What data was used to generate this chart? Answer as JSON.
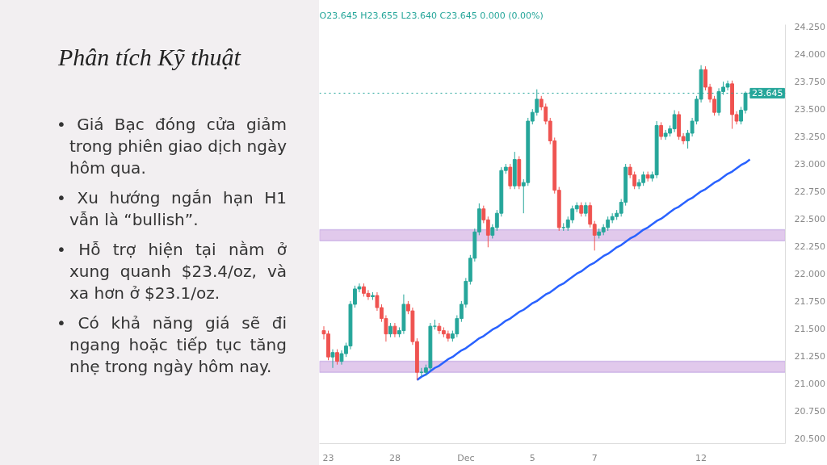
{
  "chart_data": {
    "type": "candlestick",
    "title": "Phân tích Kỹ thuật",
    "subtitle": "O23.645 H23.655 L23.640 C23.645 0.000 (0.00%)",
    "annotations": [
      "• Giá Bạc đóng cửa giảm trong phiên giao dịch ngày hôm qua.",
      "• Xu hướng ngắn hạn H1 vẫn là “bullish”.",
      "• Hỗ trợ hiện tại nằm ở xung quanh $23.4/oz, và xa hơn ở $23.1/oz.",
      "• Có khả năng giá sẽ đi ngang hoặc tiếp tục tăng nhẹ trong ngày hôm nay."
    ],
    "categories": [
      null,
      "23",
      null,
      null,
      null,
      null,
      null,
      null,
      null,
      null,
      null,
      null,
      null,
      null,
      null,
      null,
      "28",
      null,
      null,
      null,
      null,
      null,
      null,
      null,
      null,
      null,
      null,
      null,
      null,
      null,
      null,
      null,
      "Dec",
      null,
      null,
      null,
      null,
      null,
      null,
      null,
      null,
      null,
      null,
      null,
      null,
      null,
      null,
      "5",
      null,
      null,
      null,
      null,
      null,
      null,
      null,
      null,
      null,
      null,
      null,
      null,
      null,
      "7",
      null,
      null,
      null,
      null,
      null,
      null,
      null,
      null,
      null,
      null,
      null,
      null,
      null,
      null,
      null,
      null,
      null,
      null,
      null,
      null,
      null,
      null,
      null,
      "12",
      null,
      null,
      null,
      null,
      null,
      null,
      null,
      null,
      null,
      null,
      null
    ],
    "ohlc": [
      [
        21.48,
        21.52,
        21.4,
        21.45
      ],
      [
        21.45,
        21.48,
        21.21,
        21.24
      ],
      [
        21.24,
        21.31,
        21.14,
        21.28
      ],
      [
        21.28,
        21.31,
        21.17,
        21.2
      ],
      [
        21.2,
        21.3,
        21.17,
        21.27
      ],
      [
        21.27,
        21.37,
        21.24,
        21.34
      ],
      [
        21.34,
        21.75,
        21.31,
        21.72
      ],
      [
        21.72,
        21.89,
        21.69,
        21.86
      ],
      [
        21.86,
        21.91,
        21.83,
        21.88
      ],
      [
        21.88,
        21.91,
        21.79,
        21.82
      ],
      [
        21.82,
        21.85,
        21.76,
        21.79
      ],
      [
        21.79,
        21.83,
        21.76,
        21.8
      ],
      [
        21.8,
        21.83,
        21.66,
        21.69
      ],
      [
        21.69,
        21.72,
        21.56,
        21.59
      ],
      [
        21.59,
        21.62,
        21.38,
        21.45
      ],
      [
        21.45,
        21.55,
        21.42,
        21.52
      ],
      [
        21.52,
        21.55,
        21.42,
        21.45
      ],
      [
        21.45,
        21.51,
        21.42,
        21.48
      ],
      [
        21.48,
        21.81,
        21.45,
        21.72
      ],
      [
        21.72,
        21.75,
        21.63,
        21.66
      ],
      [
        21.66,
        21.69,
        21.35,
        21.38
      ],
      [
        21.38,
        21.41,
        21.03,
        21.1
      ],
      [
        21.1,
        21.14,
        21.06,
        21.1
      ],
      [
        21.1,
        21.17,
        21.07,
        21.14
      ],
      [
        21.14,
        21.55,
        21.11,
        21.52
      ],
      [
        21.52,
        21.58,
        21.49,
        21.52
      ],
      [
        21.52,
        21.55,
        21.45,
        21.48
      ],
      [
        21.48,
        21.51,
        21.42,
        21.45
      ],
      [
        21.45,
        21.48,
        21.38,
        21.41
      ],
      [
        21.41,
        21.48,
        21.38,
        21.45
      ],
      [
        21.45,
        21.62,
        21.42,
        21.59
      ],
      [
        21.59,
        21.75,
        21.56,
        21.72
      ],
      [
        21.72,
        21.96,
        21.69,
        21.93
      ],
      [
        21.93,
        22.17,
        21.9,
        22.14
      ],
      [
        22.14,
        22.41,
        22.11,
        22.38
      ],
      [
        22.38,
        22.64,
        22.35,
        22.59
      ],
      [
        22.59,
        22.62,
        22.46,
        22.49
      ],
      [
        22.49,
        22.52,
        22.24,
        22.35
      ],
      [
        22.35,
        22.45,
        22.32,
        22.42
      ],
      [
        22.42,
        22.58,
        22.39,
        22.55
      ],
      [
        22.55,
        22.97,
        22.52,
        22.94
      ],
      [
        22.94,
        23.0,
        22.91,
        22.97
      ],
      [
        22.97,
        23.0,
        22.77,
        22.8
      ],
      [
        22.8,
        23.11,
        22.77,
        23.04
      ],
      [
        23.04,
        23.07,
        22.77,
        22.8
      ],
      [
        22.8,
        22.86,
        22.55,
        22.83
      ],
      [
        22.83,
        23.42,
        22.8,
        23.39
      ],
      [
        23.39,
        23.5,
        23.36,
        23.47
      ],
      [
        23.47,
        23.68,
        23.44,
        23.59
      ],
      [
        23.59,
        23.62,
        23.49,
        23.52
      ],
      [
        23.52,
        23.55,
        23.36,
        23.39
      ],
      [
        23.39,
        23.42,
        23.18,
        23.21
      ],
      [
        23.21,
        23.24,
        22.73,
        22.76
      ],
      [
        22.76,
        22.79,
        22.39,
        22.42
      ],
      [
        22.42,
        22.46,
        22.39,
        22.42
      ],
      [
        22.42,
        22.52,
        22.39,
        22.49
      ],
      [
        22.49,
        22.62,
        22.46,
        22.59
      ],
      [
        22.59,
        22.65,
        22.56,
        22.62
      ],
      [
        22.62,
        22.65,
        22.52,
        22.55
      ],
      [
        22.55,
        22.65,
        22.52,
        22.62
      ],
      [
        22.62,
        22.65,
        22.42,
        22.45
      ],
      [
        22.45,
        22.48,
        22.21,
        22.35
      ],
      [
        22.35,
        22.41,
        22.32,
        22.38
      ],
      [
        22.38,
        22.45,
        22.35,
        22.42
      ],
      [
        22.42,
        22.52,
        22.39,
        22.49
      ],
      [
        22.49,
        22.55,
        22.46,
        22.52
      ],
      [
        22.52,
        22.58,
        22.49,
        22.55
      ],
      [
        22.55,
        22.68,
        22.52,
        22.65
      ],
      [
        22.65,
        23.0,
        22.62,
        22.97
      ],
      [
        22.97,
        23.0,
        22.87,
        22.9
      ],
      [
        22.9,
        22.93,
        22.77,
        22.8
      ],
      [
        22.8,
        22.86,
        22.77,
        22.83
      ],
      [
        22.83,
        22.93,
        22.8,
        22.9
      ],
      [
        22.9,
        22.93,
        22.84,
        22.87
      ],
      [
        22.87,
        22.93,
        22.84,
        22.9
      ],
      [
        22.9,
        23.39,
        22.87,
        23.35
      ],
      [
        23.35,
        23.38,
        23.22,
        23.25
      ],
      [
        23.25,
        23.31,
        23.22,
        23.28
      ],
      [
        23.28,
        23.35,
        23.25,
        23.32
      ],
      [
        23.32,
        23.49,
        23.29,
        23.45
      ],
      [
        23.45,
        23.48,
        23.22,
        23.25
      ],
      [
        23.25,
        23.28,
        23.18,
        23.21
      ],
      [
        23.21,
        23.31,
        23.14,
        23.28
      ],
      [
        23.28,
        23.42,
        23.25,
        23.39
      ],
      [
        23.39,
        23.62,
        23.36,
        23.59
      ],
      [
        23.59,
        23.9,
        23.56,
        23.86
      ],
      [
        23.86,
        23.89,
        23.67,
        23.7
      ],
      [
        23.7,
        23.73,
        23.56,
        23.59
      ],
      [
        23.59,
        23.62,
        23.44,
        23.47
      ],
      [
        23.47,
        23.69,
        23.44,
        23.66
      ],
      [
        23.66,
        23.75,
        23.63,
        23.7
      ],
      [
        23.7,
        23.76,
        23.67,
        23.73
      ],
      [
        23.73,
        23.76,
        23.32,
        23.45
      ],
      [
        23.45,
        23.48,
        23.36,
        23.39
      ],
      [
        23.39,
        23.52,
        23.36,
        23.49
      ],
      [
        23.49,
        23.66,
        23.46,
        23.645
      ],
      [
        23.645,
        23.655,
        23.64,
        23.645
      ]
    ],
    "series": [
      {
        "type": "line",
        "color": "#2962ff",
        "values": [
          null,
          null,
          null,
          null,
          null,
          null,
          null,
          null,
          null,
          null,
          null,
          null,
          null,
          null,
          null,
          null,
          null,
          null,
          null,
          null,
          null,
          21.03,
          21.06,
          21.08,
          21.11,
          21.14,
          21.16,
          21.19,
          21.22,
          21.24,
          21.27,
          21.3,
          21.32,
          21.35,
          21.38,
          21.41,
          21.43,
          21.46,
          21.49,
          21.51,
          21.54,
          21.57,
          21.59,
          21.62,
          21.65,
          21.67,
          21.7,
          21.73,
          21.75,
          21.78,
          21.81,
          21.83,
          21.86,
          21.89,
          21.91,
          21.94,
          21.97,
          22.0,
          22.02,
          22.05,
          22.08,
          22.1,
          22.13,
          22.16,
          22.18,
          22.21,
          22.24,
          22.26,
          22.29,
          22.32,
          22.34,
          22.37,
          22.4,
          22.42,
          22.45,
          22.48,
          22.5,
          22.53,
          22.56,
          22.59,
          22.61,
          22.64,
          22.67,
          22.69,
          22.72,
          22.75,
          22.77,
          22.8,
          22.83,
          22.85,
          22.88,
          22.91,
          22.93,
          22.96,
          22.99,
          23.01,
          23.04
        ]
      }
    ],
    "ylim": [
      20.45,
      24.27
    ],
    "yticks": [
      {
        "value": 20.5,
        "label": "20.500"
      },
      {
        "value": 20.75,
        "label": "20.750"
      },
      {
        "value": 21.0,
        "label": "21.000"
      },
      {
        "value": 21.25,
        "label": "21.250"
      },
      {
        "value": 21.5,
        "label": "21.500"
      },
      {
        "value": 21.75,
        "label": "21.750"
      },
      {
        "value": 22.0,
        "label": "22.000"
      },
      {
        "value": 22.25,
        "label": "22.250"
      },
      {
        "value": 22.5,
        "label": "22.500"
      },
      {
        "value": 22.75,
        "label": "22.750"
      },
      {
        "value": 23.0,
        "label": "23.000"
      },
      {
        "value": 23.25,
        "label": "23.250"
      },
      {
        "value": 23.5,
        "label": "23.500"
      },
      {
        "value": 23.75,
        "label": "23.750"
      },
      {
        "value": 24.0,
        "label": "24.000"
      },
      {
        "value": 24.25,
        "label": "24.250"
      }
    ],
    "ref_lines": [
      {
        "axis": "y",
        "value": 23.645,
        "label": "23.645",
        "color": "#26a69a",
        "line_style": "dotted"
      }
    ],
    "bands": [
      {
        "axis": "y",
        "from": 22.3,
        "to": 22.4,
        "color": "#e1c9ec"
      },
      {
        "axis": "y",
        "from": 21.1,
        "to": 21.2,
        "color": "#e1c9ec"
      }
    ],
    "grid": false
  }
}
